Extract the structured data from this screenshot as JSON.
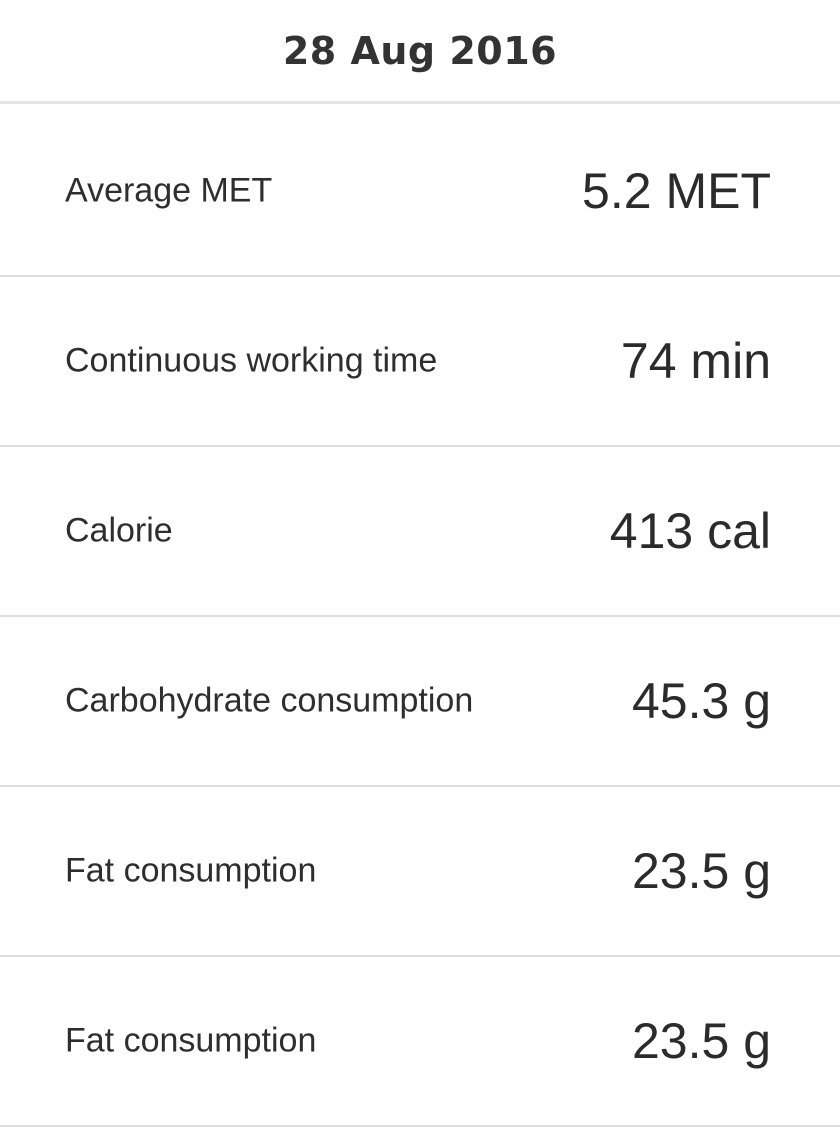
{
  "header": {
    "date": "28 Aug 2016"
  },
  "rows": [
    {
      "label": "Average MET",
      "value": "5.2 MET"
    },
    {
      "label": "Continuous working time",
      "value": "74 min"
    },
    {
      "label": "Calorie",
      "value": "413 cal"
    },
    {
      "label": "Carbohydrate consumption",
      "value": "45.3 g"
    },
    {
      "label": "Fat consumption",
      "value": "23.5 g"
    },
    {
      "label": "Fat consumption",
      "value": "23.5 g"
    }
  ]
}
